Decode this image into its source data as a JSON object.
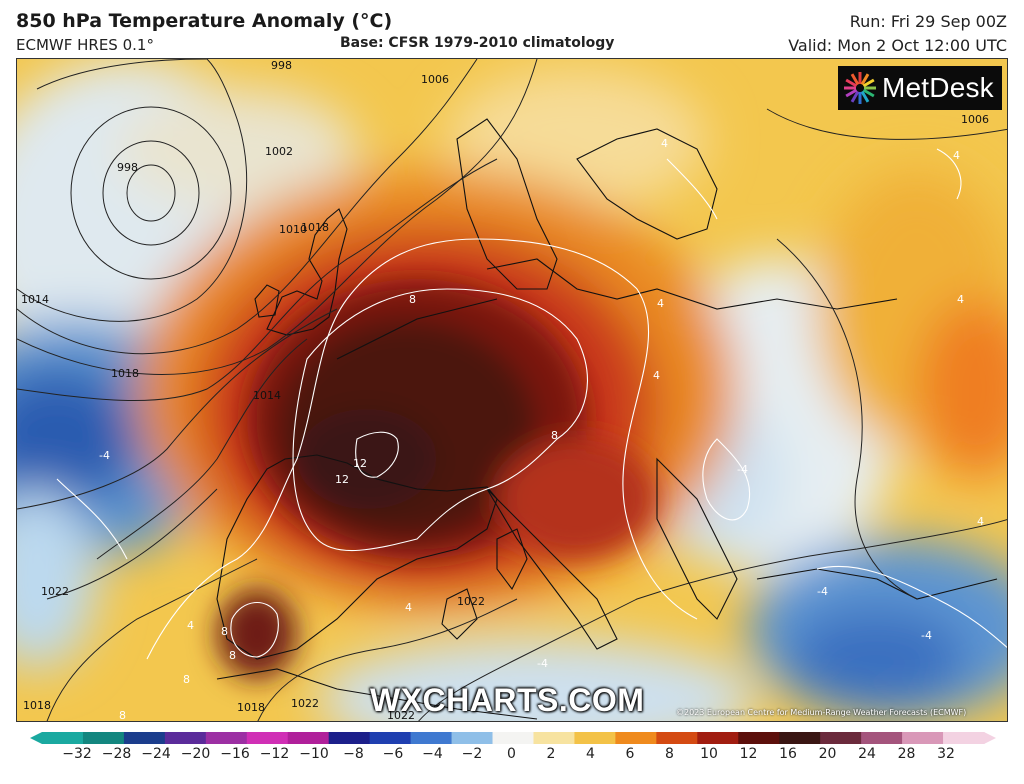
{
  "header": {
    "title": "850 hPa Temperature Anomaly (°C)",
    "model": "ECMWF HRES 0.1°",
    "base": "Base: CFSR 1979-2010 climatology",
    "run": "Run: Fri 29 Sep 00Z",
    "valid": "Valid: Mon 2 Oct 12:00 UTC"
  },
  "logo": {
    "text": "MetDesk",
    "icon": "metdesk-starburst-icon"
  },
  "watermark": "WXCHARTS.COM",
  "copyright": "©2023 European Centre for Medium-Range Weather Forecasts (ECMWF)",
  "isobar_labels": [
    "998",
    "998",
    "1002",
    "1006",
    "1006",
    "1010",
    "1014",
    "1014",
    "1018",
    "1018",
    "1018",
    "1022",
    "1022",
    "1022",
    "1022",
    "1018"
  ],
  "anomaly_labels": [
    "8",
    "12",
    "12",
    "8",
    "8",
    "8",
    "8",
    "8",
    "4",
    "4",
    "4",
    "4",
    "4",
    "4",
    "4",
    "-4",
    "-4",
    "-4",
    "4",
    "-4",
    "-4"
  ],
  "colorbar": {
    "ticks": [
      "−32",
      "−28",
      "−24",
      "−20",
      "−16",
      "−12",
      "−10",
      "−8",
      "−6",
      "−4",
      "−2",
      "0",
      "2",
      "4",
      "6",
      "8",
      "10",
      "12",
      "16",
      "20",
      "24",
      "28",
      "32"
    ],
    "colors": [
      "#1aa9a0",
      "#13867f",
      "#1b3d8c",
      "#5b2b9a",
      "#9c2fa3",
      "#d02fb5",
      "#b0209a",
      "#1c1f8a",
      "#1f3fb0",
      "#3f79d0",
      "#8fbfe8",
      "#f4f4f2",
      "#f7e3a0",
      "#f3c247",
      "#ef8a1d",
      "#d44a12",
      "#a11d10",
      "#5c0f0b",
      "#3a1613",
      "#6b2a3c",
      "#a4547c",
      "#d998b8",
      "#f3d2e2"
    ]
  }
}
